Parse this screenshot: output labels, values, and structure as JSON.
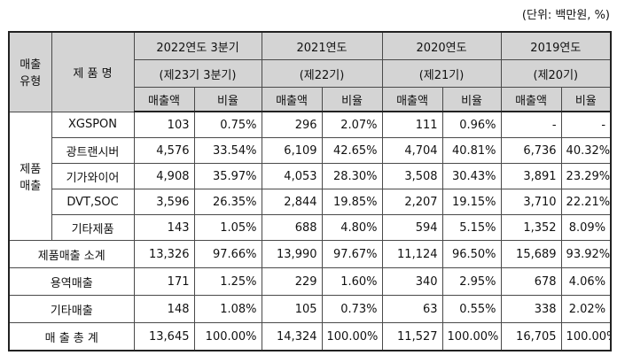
{
  "unit_note": "(단위: 백만원, %)",
  "header": {
    "type_col": "매출\n유형",
    "product_col": "제 품 명",
    "periods": [
      {
        "year": "2022연도 3분기",
        "term": "(제23기 3분기)"
      },
      {
        "year": "2021연도",
        "term": "(제22기)"
      },
      {
        "year": "2020연도",
        "term": "(제21기)"
      },
      {
        "year": "2019연도",
        "term": "(제20기)"
      }
    ],
    "sales_label": "매출액",
    "ratio_label": "비율"
  },
  "group_label": "제품\n매출",
  "products": [
    {
      "name": "XGSPON",
      "values": [
        "103",
        "0.75%",
        "296",
        "2.07%",
        "111",
        "0.96%",
        "-",
        "-"
      ]
    },
    {
      "name": "광트랜시버",
      "values": [
        "4,576",
        "33.54%",
        "6,109",
        "42.65%",
        "4,704",
        "40.81%",
        "6,736",
        "40.32%"
      ]
    },
    {
      "name": "기가와이어",
      "values": [
        "4,908",
        "35.97%",
        "4,053",
        "28.30%",
        "3,508",
        "30.43%",
        "3,891",
        "23.29%"
      ]
    },
    {
      "name": "DVT,SOC",
      "values": [
        "3,596",
        "26.35%",
        "2,844",
        "19.85%",
        "2,207",
        "19.15%",
        "3,710",
        "22.21%"
      ]
    },
    {
      "name": "기타제품",
      "values": [
        "143",
        "1.05%",
        "688",
        "4.80%",
        "594",
        "5.15%",
        "1,352",
        "8.09%"
      ]
    }
  ],
  "summary_rows": [
    {
      "name": "제품매출 소계",
      "values": [
        "13,326",
        "97.66%",
        "13,990",
        "97.67%",
        "11,124",
        "96.50%",
        "15,689",
        "93.92%"
      ]
    },
    {
      "name": "용역매출",
      "values": [
        "171",
        "1.25%",
        "229",
        "1.60%",
        "340",
        "2.95%",
        "678",
        "4.06%"
      ]
    },
    {
      "name": "기타매출",
      "values": [
        "148",
        "1.08%",
        "105",
        "0.73%",
        "63",
        "0.55%",
        "338",
        "2.02%"
      ]
    },
    {
      "name": "매 출 총 계",
      "values": [
        "13,645",
        "100.00%",
        "14,324",
        "100.00%",
        "11,527",
        "100.00%",
        "16,705",
        "100.00%"
      ]
    }
  ]
}
